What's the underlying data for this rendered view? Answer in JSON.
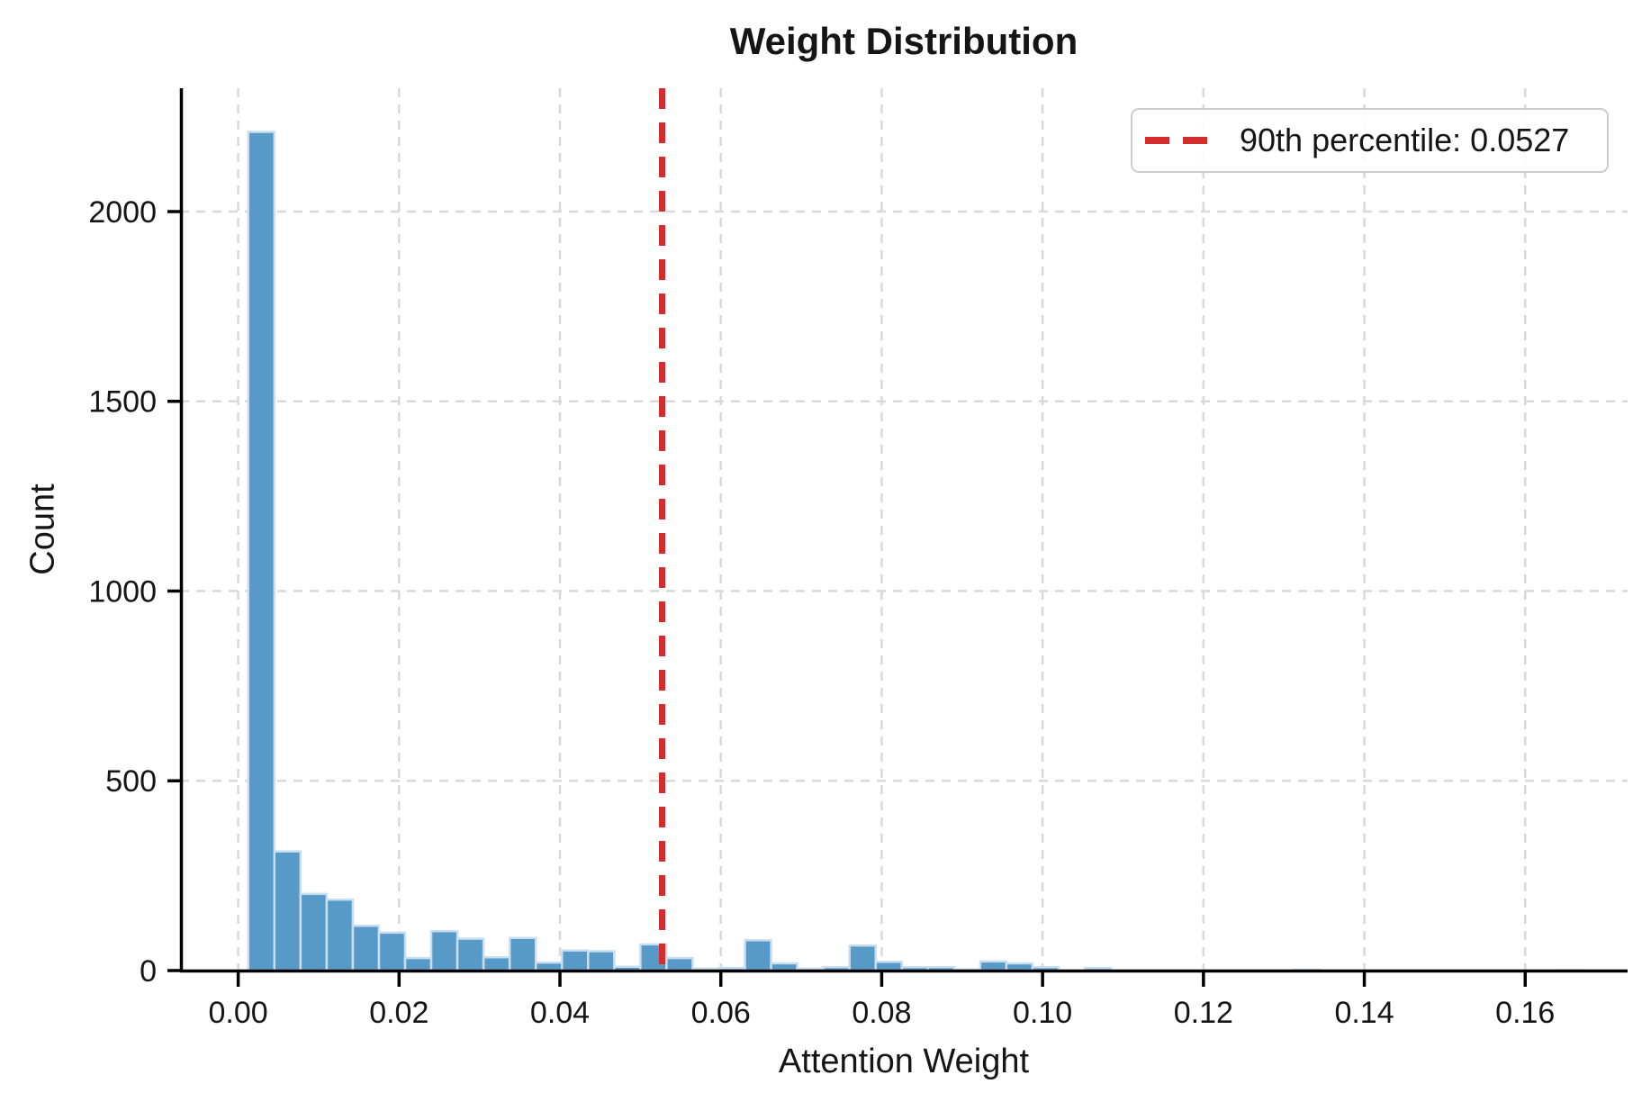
{
  "chart_data": {
    "type": "bar",
    "subtype": "histogram",
    "title": "Weight Distribution",
    "xlabel": "Attention Weight",
    "ylabel": "Count",
    "bin_start": 0.00125,
    "bin_width": 0.00325,
    "counts": [
      2210,
      314,
      202,
      187,
      118,
      100,
      33,
      104,
      84,
      35,
      86,
      21,
      53,
      51,
      10,
      69,
      33,
      5,
      7,
      80,
      19,
      5,
      9,
      66,
      23,
      9,
      9,
      3,
      24,
      19,
      9,
      0,
      7,
      0,
      0,
      0,
      0,
      0,
      0,
      0,
      2,
      0,
      0,
      0,
      0,
      0,
      0,
      0,
      0,
      0,
      1
    ],
    "x_tick_values": [
      0.0,
      0.02,
      0.04,
      0.06,
      0.08,
      0.1,
      0.12,
      0.14,
      0.16
    ],
    "x_tick_labels": [
      "0.00",
      "0.02",
      "0.04",
      "0.06",
      "0.08",
      "0.10",
      "0.12",
      "0.14",
      "0.16"
    ],
    "y_tick_values": [
      0,
      500,
      1000,
      1500,
      2000
    ],
    "y_tick_labels": [
      "0",
      "500",
      "1000",
      "1500",
      "2000"
    ],
    "xlim": [
      -0.00723,
      0.17273
    ],
    "ylim": [
      0,
      2325
    ],
    "grid": true,
    "grid_style": "dashed",
    "percentile_line": {
      "value": 0.0527,
      "style": "dashed",
      "color": "#d32d2d"
    },
    "legend": {
      "position": "upper right",
      "label": "90th percentile: 0.0527"
    },
    "colors": {
      "bar_fill": "#5799c7",
      "bar_edge": "#c9dff0",
      "grid": "#d9d9d9",
      "axis": "#000000",
      "text": "#151515"
    }
  }
}
